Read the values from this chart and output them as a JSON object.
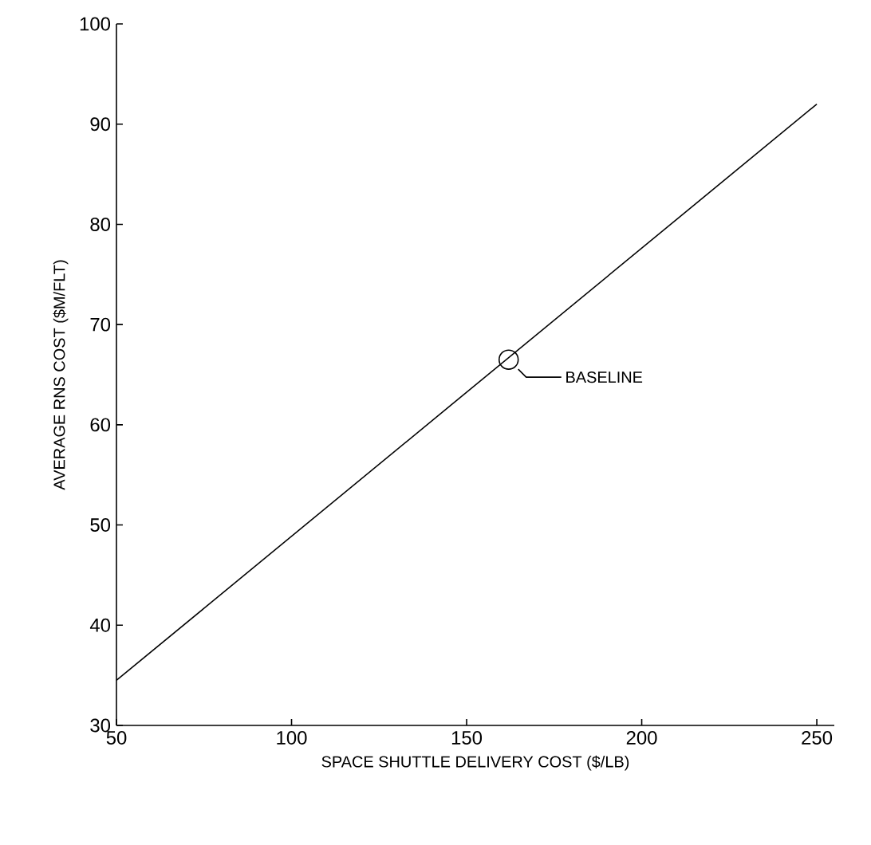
{
  "chart_data": {
    "type": "line",
    "xlabel": "SPACE SHUTTLE DELIVERY COST ($/LB)",
    "ylabel": "AVERAGE RNS COST ($M/FLT)",
    "xlim": [
      50,
      255
    ],
    "ylim": [
      30,
      100
    ],
    "xticks": [
      50,
      100,
      150,
      200,
      250
    ],
    "yticks": [
      30,
      40,
      50,
      60,
      70,
      80,
      90,
      100
    ],
    "grid": false,
    "series": [
      {
        "color": "#000000",
        "x": [
          50,
          250
        ],
        "values": [
          34.5,
          92
        ]
      },
      {
        "type": "scatter",
        "color": "#000000",
        "marker": "circle",
        "x": [
          162
        ],
        "values": [
          66.5
        ]
      }
    ],
    "annotations": [
      {
        "text": "BASELINE",
        "x": 162,
        "y": 66.5
      }
    ]
  }
}
